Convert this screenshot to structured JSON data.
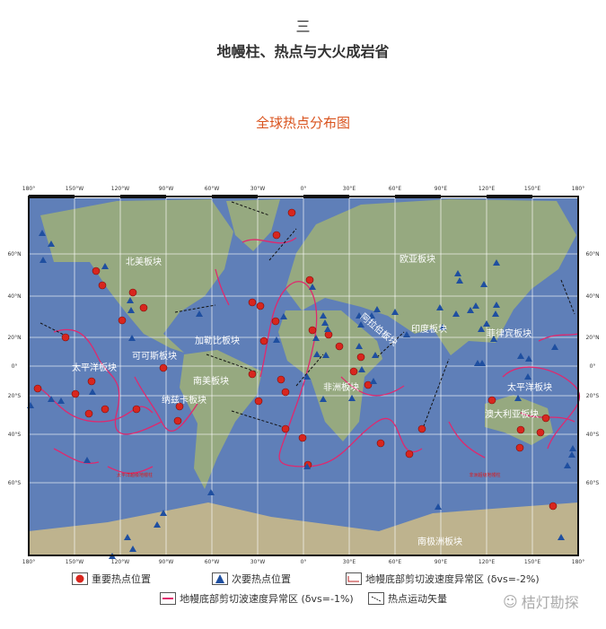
{
  "header": {
    "section": "三",
    "title": "地幔柱、热点与大火成岩省",
    "figure_title": "全球热点分布图"
  },
  "map": {
    "lon_labels": [
      "180°",
      "150°W",
      "120°W",
      "90°W",
      "60°W",
      "30°W",
      "0°",
      "30°E",
      "60°E",
      "90°E",
      "120°E",
      "150°E",
      "180°"
    ],
    "lat_labels": [
      "60°N",
      "40°N",
      "20°N",
      "0°",
      "20°S",
      "40°S",
      "60°S"
    ],
    "plates": [
      "北美板块",
      "欧亚板块",
      "太平洋板块",
      "可可斯板块",
      "加勒比板块",
      "南美板块",
      "纳兹卡板块",
      "非洲板块",
      "印度板块",
      "菲律宾板块",
      "太平洋板块",
      "澳大利亚板块",
      "南极洲板块",
      "阿拉伯板块"
    ],
    "superplumes": [
      "太平洋超级地幔柱",
      "非洲超级地幔柱"
    ],
    "colors": {
      "ocean": "#5f7fb8",
      "land": "#9cae7a",
      "hotspot": "#d8261e",
      "secondary": "#1f4fa0",
      "anomaly_line": "#e0286e"
    }
  },
  "legend": {
    "major": "重要热点位置",
    "minor": "次要热点位置",
    "anomaly_pos": "地幔底部剪切波速度异常区 (δvs=-2%)",
    "anomaly_neg": "地幔底部剪切波速度异常区 (δvs=-1%)",
    "vector": "热点运动矢量"
  },
  "watermark": "桔灯勘探"
}
